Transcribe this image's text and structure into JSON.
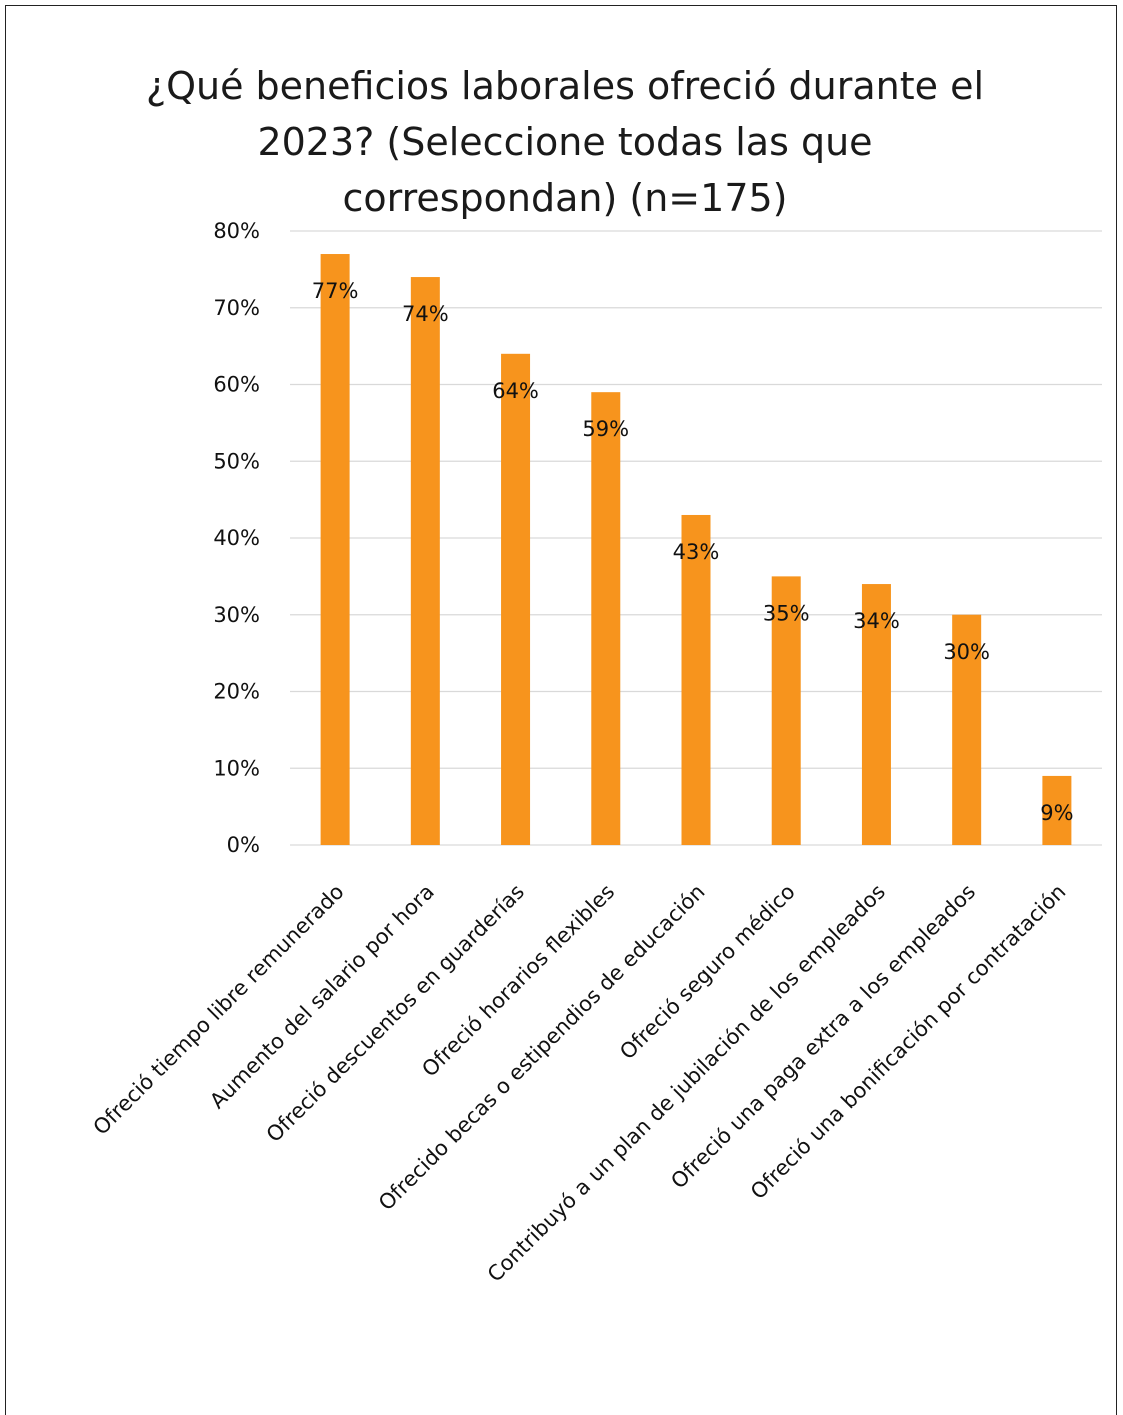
{
  "chart_data": {
    "type": "bar",
    "title": "¿Qué beneficios laborales ofreció durante el 2023? (Seleccione todas las que correspondan) (n=175)",
    "title_lines": [
      "¿Qué beneficios laborales ofreció durante el",
      "2023? (Seleccione todas las que",
      "correspondan) (n=175)"
    ],
    "categories": [
      "Ofreció tiempo libre remunerado",
      "Aumento del salario por hora",
      "Ofreció descuentos en guarderías",
      "Ofreció horarios flexibles",
      "Ofrecido becas o estipendios de educación",
      "Ofreció seguro médico",
      "Contribuyó a un plan de jubilación de los empleados",
      "Ofreció una paga extra a los empleados",
      "Ofreció una bonificación por contratación"
    ],
    "values": [
      77,
      74,
      64,
      59,
      43,
      35,
      34,
      30,
      9
    ],
    "data_labels": [
      "77%",
      "74%",
      "64%",
      "59%",
      "43%",
      "35%",
      "34%",
      "30%",
      "9%"
    ],
    "yticks": [
      "0%",
      "10%",
      "20%",
      "30%",
      "40%",
      "50%",
      "60%",
      "70%",
      "80%"
    ],
    "ylim": [
      0,
      80
    ],
    "grid": true,
    "legend": "none",
    "bar_color": "#F7941D",
    "grid_color": "#d9d9d9"
  }
}
